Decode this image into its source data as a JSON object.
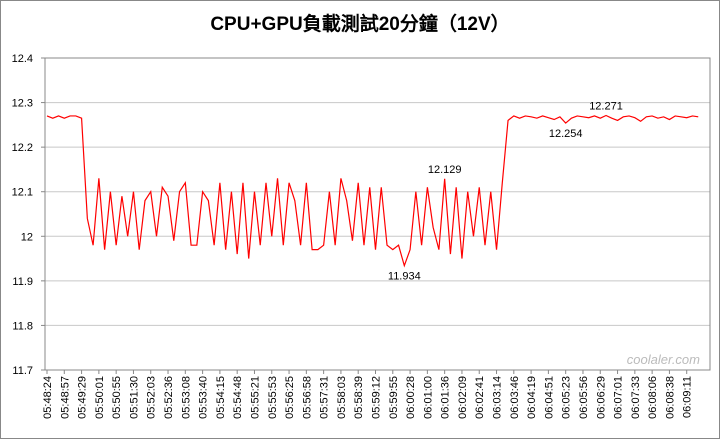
{
  "chart_data": {
    "type": "line",
    "title": "CPU+GPU負載測試20分鐘（12V）",
    "watermark": "coolaler.com",
    "categories": [
      "05:48:24",
      null,
      null,
      "05:48:57",
      null,
      null,
      "05:49:29",
      null,
      null,
      "05:50:01",
      null,
      null,
      "05:50:55",
      null,
      null,
      "05:51:30",
      null,
      null,
      "05:52:03",
      null,
      null,
      "05:52:36",
      null,
      null,
      "05:53:08",
      null,
      null,
      "05:53:40",
      null,
      null,
      "05:54:15",
      null,
      null,
      "05:54:48",
      null,
      null,
      "05:55:21",
      null,
      null,
      "05:55:53",
      null,
      null,
      "05:56:25",
      null,
      null,
      "05:56:58",
      null,
      null,
      "05:57:31",
      null,
      null,
      "05:58:03",
      null,
      null,
      "05:58:39",
      null,
      null,
      "05:59:12",
      null,
      null,
      "05:59:55",
      null,
      null,
      "06:00:28",
      null,
      null,
      "06:01:00",
      null,
      null,
      "06:01:36",
      null,
      null,
      "06:02:09",
      null,
      null,
      "06:02:41",
      null,
      null,
      "06:03:14",
      null,
      null,
      "06:03:46",
      null,
      null,
      "06:04:19",
      null,
      null,
      "06:04:51",
      null,
      null,
      "06:05:23",
      null,
      null,
      "06:05:56",
      null,
      null,
      "06:06:29",
      null,
      null,
      "06:07:01",
      null,
      null,
      "06:07:33",
      null,
      null,
      "06:08:06",
      null,
      null,
      "06:08:38",
      null,
      null,
      "06:09:11",
      null,
      null
    ],
    "series": [
      {
        "color": "#ff0000",
        "values": [
          12.27,
          12.265,
          12.27,
          12.265,
          12.27,
          12.27,
          12.265,
          12.04,
          11.98,
          12.13,
          11.97,
          12.1,
          11.98,
          12.09,
          12.0,
          12.1,
          11.97,
          12.08,
          12.1,
          12.0,
          12.11,
          12.09,
          11.99,
          12.1,
          12.12,
          11.98,
          11.98,
          12.1,
          12.08,
          11.98,
          12.12,
          11.97,
          12.1,
          11.96,
          12.12,
          11.95,
          12.1,
          11.98,
          12.12,
          12.0,
          12.13,
          11.98,
          12.12,
          12.08,
          11.98,
          12.12,
          11.97,
          11.97,
          11.98,
          12.1,
          11.98,
          12.13,
          12.08,
          11.99,
          12.12,
          11.98,
          12.11,
          11.97,
          12.11,
          11.98,
          11.97,
          11.98,
          11.934,
          11.97,
          12.1,
          11.98,
          12.11,
          12.02,
          11.97,
          12.129,
          11.96,
          12.11,
          11.95,
          12.1,
          12.0,
          12.11,
          11.98,
          12.1,
          11.97,
          12.12,
          12.26,
          12.27,
          12.265,
          12.27,
          12.268,
          12.265,
          12.27,
          12.266,
          12.262,
          12.268,
          12.254,
          12.265,
          12.27,
          12.268,
          12.266,
          12.27,
          12.265,
          12.271,
          12.265,
          12.26,
          12.268,
          12.27,
          12.266,
          12.258,
          12.268,
          12.27,
          12.265,
          12.268,
          12.262,
          12.27,
          12.268,
          12.266,
          12.27,
          12.268
        ],
        "value_labels": [
          null,
          null,
          null,
          null,
          null,
          null,
          null,
          null,
          null,
          null,
          null,
          null,
          null,
          null,
          null,
          null,
          null,
          null,
          null,
          null,
          null,
          null,
          null,
          null,
          null,
          null,
          null,
          null,
          null,
          null,
          null,
          null,
          null,
          null,
          null,
          null,
          null,
          null,
          null,
          null,
          null,
          null,
          null,
          null,
          null,
          null,
          null,
          null,
          null,
          null,
          null,
          null,
          null,
          null,
          null,
          null,
          null,
          null,
          null,
          null,
          null,
          null,
          "11.934",
          null,
          null,
          null,
          null,
          null,
          null,
          "12.129",
          null,
          null,
          null,
          null,
          null,
          null,
          null,
          null,
          null,
          null,
          null,
          null,
          null,
          null,
          null,
          null,
          null,
          null,
          null,
          null,
          "12.254",
          null,
          null,
          null,
          null,
          null,
          null,
          "12.271",
          null,
          null,
          null,
          null,
          null,
          null,
          null,
          null,
          null,
          null,
          null,
          null,
          null,
          null,
          null,
          null
        ]
      }
    ],
    "ylim": [
      11.7,
      12.4
    ],
    "yticks": [
      11.7,
      11.8,
      11.9,
      12,
      12.1,
      12.2,
      12.3,
      12.4
    ],
    "grid": true
  }
}
